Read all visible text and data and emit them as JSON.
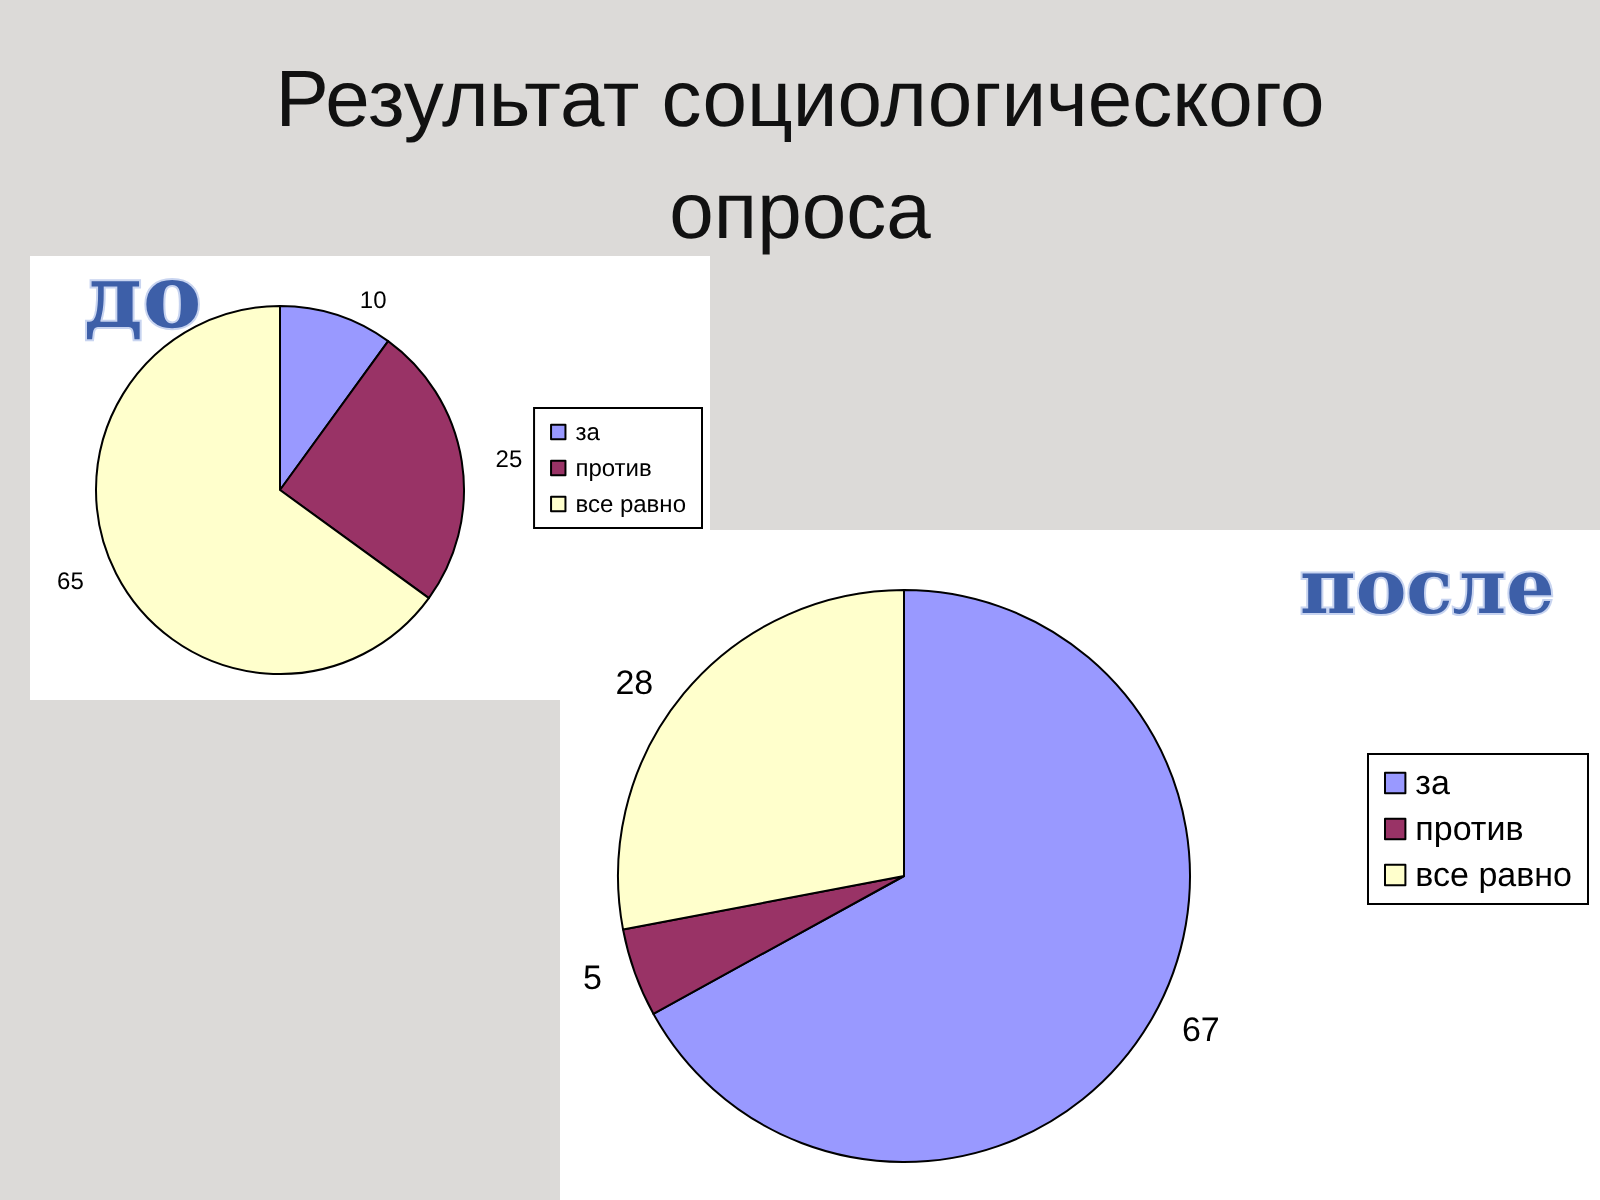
{
  "chart_data": [
    {
      "type": "pie",
      "title": "до",
      "annotations": [
        "Результат социологического опроса"
      ],
      "categories": [
        "за",
        "против",
        "все равно"
      ],
      "values": [
        10,
        25,
        65
      ],
      "colors": [
        "#9999ff",
        "#993366",
        "#ffffcc"
      ],
      "data_labels": true,
      "legend": "right"
    },
    {
      "type": "pie",
      "title": "после",
      "categories": [
        "за",
        "против",
        "все равно"
      ],
      "values": [
        67,
        5,
        28
      ],
      "colors": [
        "#9999ff",
        "#993366",
        "#ffffcc"
      ],
      "data_labels": true,
      "legend": "right"
    }
  ]
}
